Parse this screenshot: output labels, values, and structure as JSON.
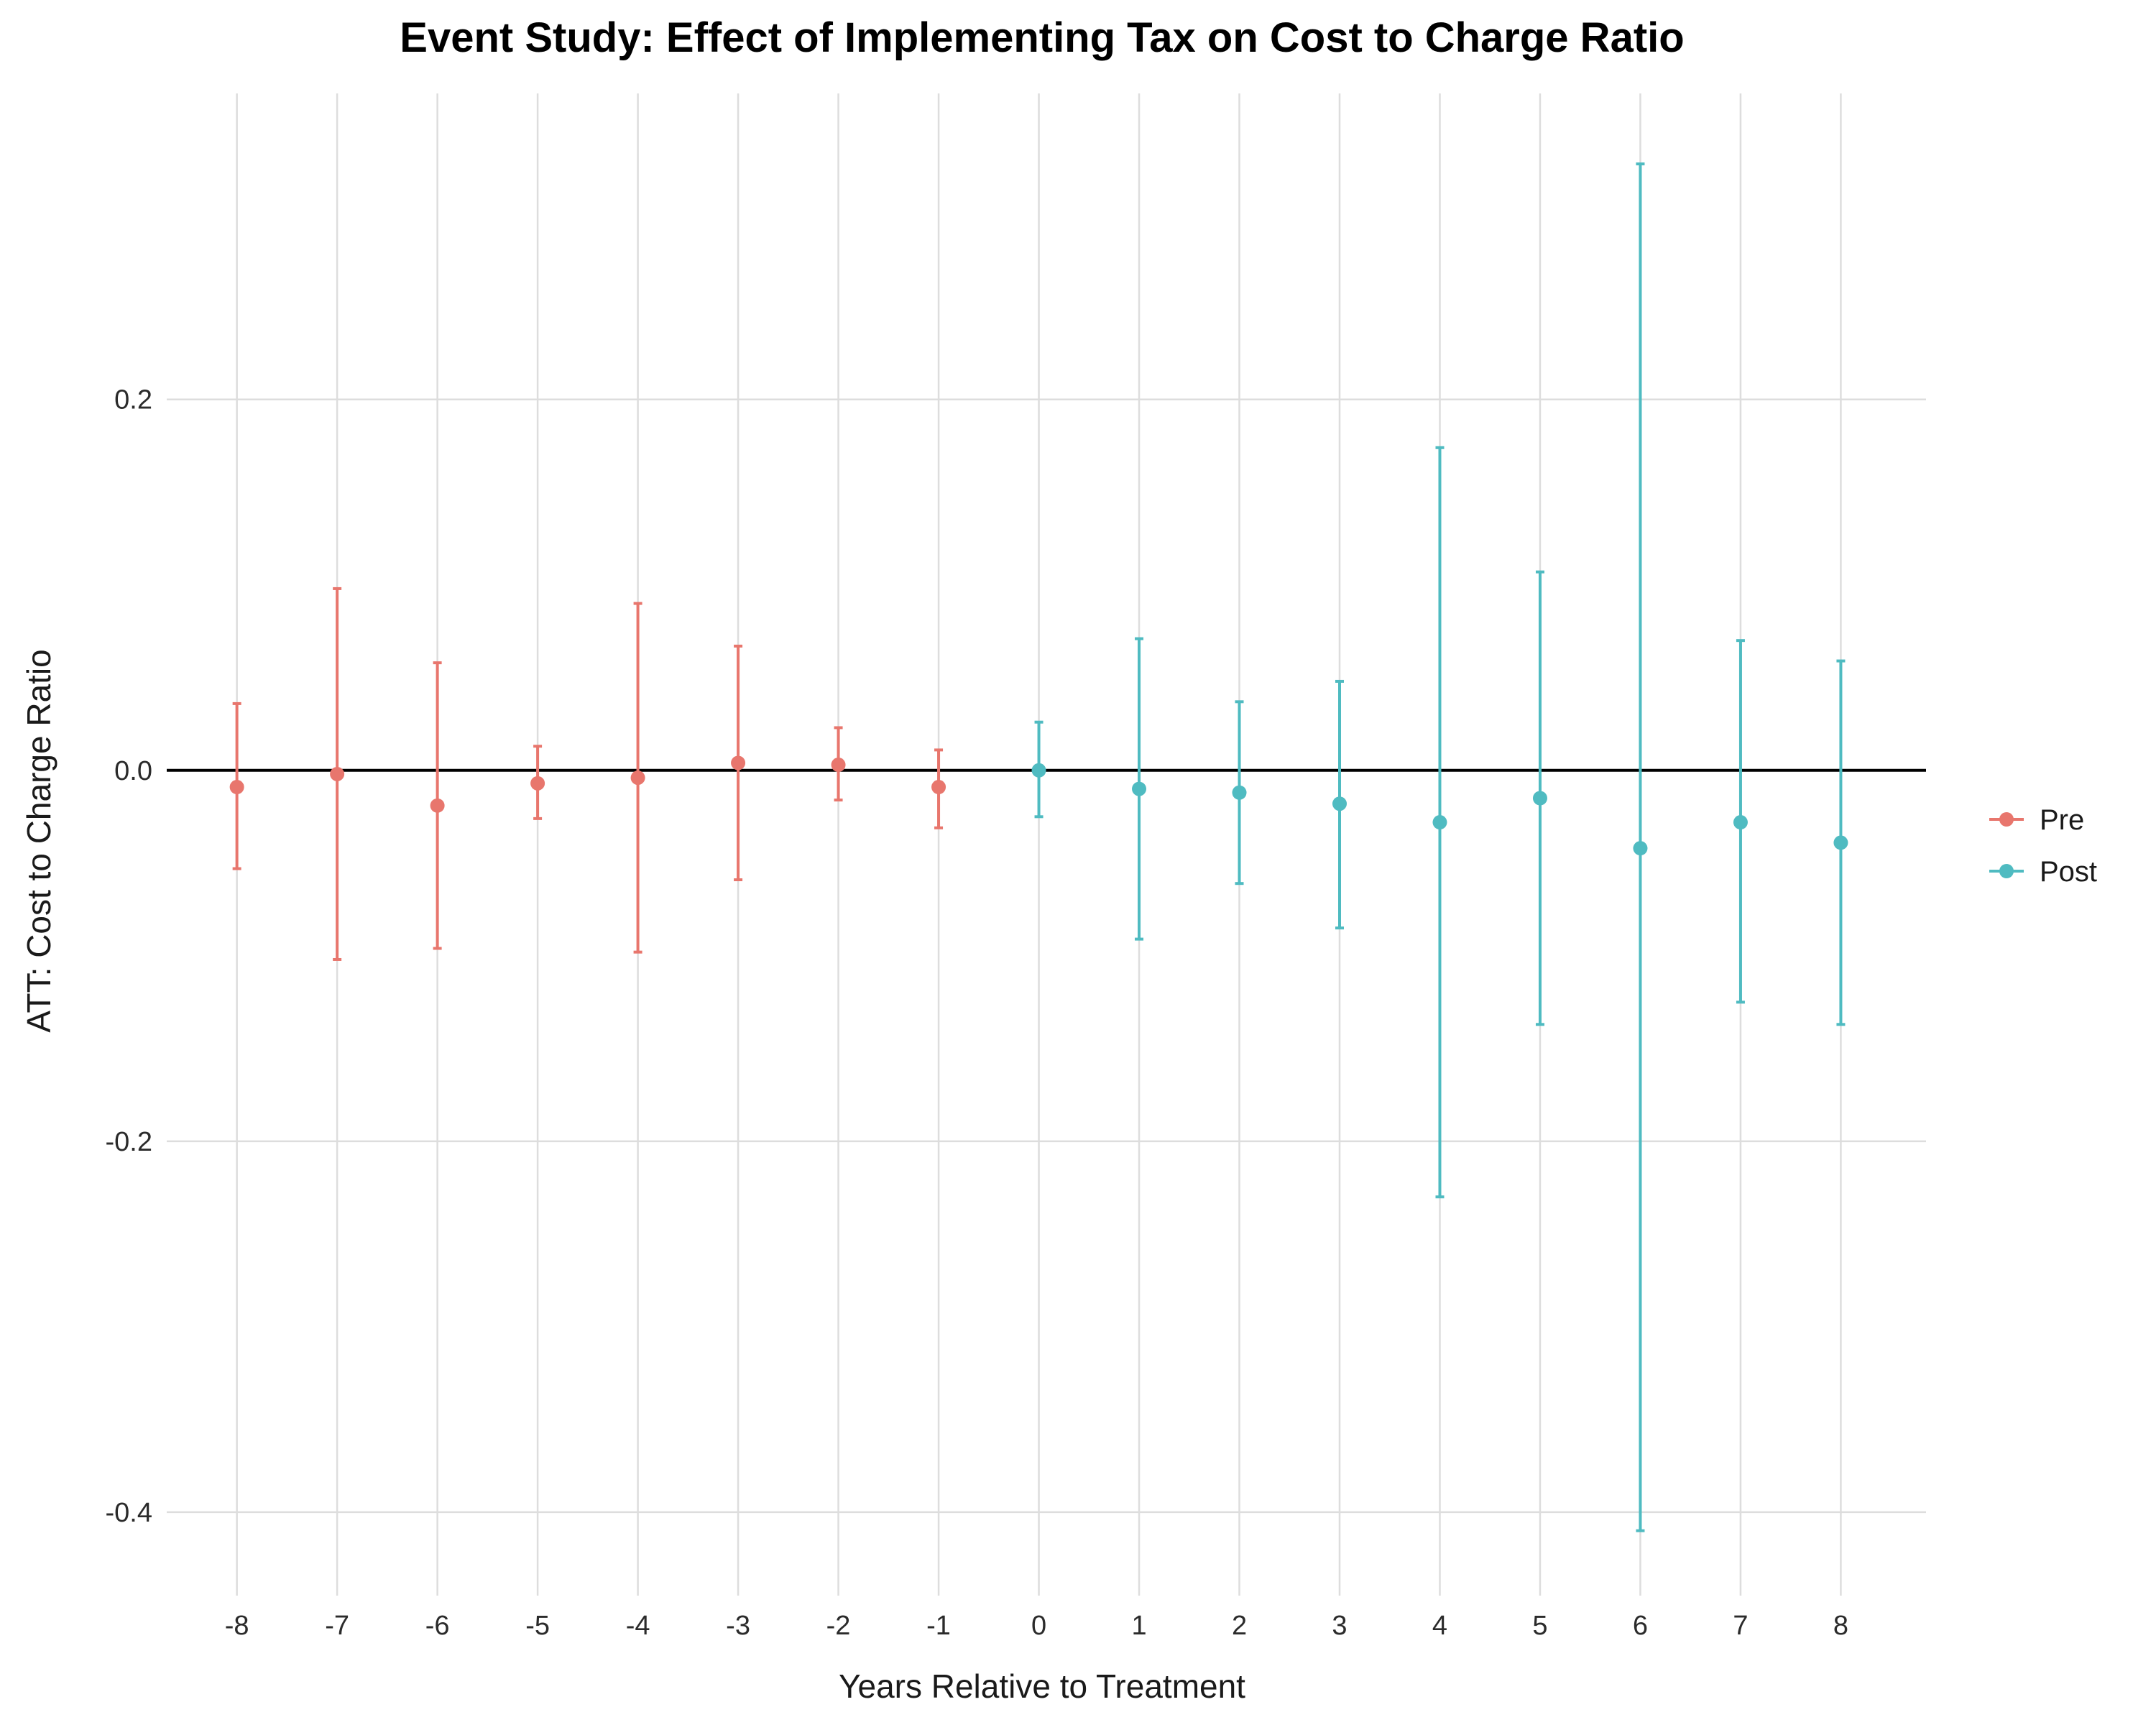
{
  "chart_data": {
    "type": "scatter",
    "title": "Event Study: Effect of Implementing Tax on Cost to Charge Ratio",
    "xlabel": "Years Relative to Treatment",
    "ylabel": "ATT: Cost to Charge Ratio",
    "x_ticks": [
      "-8",
      "-7",
      "-6",
      "-5",
      "-4",
      "-3",
      "-2",
      "-1",
      "0",
      "1",
      "2",
      "3",
      "4",
      "5",
      "6",
      "7",
      "8"
    ],
    "y_ticks": [
      "0.2",
      "0.0",
      "-0.2",
      "-0.4"
    ],
    "y_tick_values": [
      0.2,
      0.0,
      -0.2,
      -0.4
    ],
    "xlim": [
      -8.7,
      8.85
    ],
    "ylim": [
      -0.445,
      0.365
    ],
    "grid": true,
    "legend_position": "right",
    "reference_line": {
      "y": 0,
      "style": "dashed",
      "color": "#000000"
    },
    "series": [
      {
        "name": "Pre",
        "color": "#E8766D",
        "points": [
          {
            "x": -8,
            "y": -0.009,
            "lo": -0.053,
            "hi": 0.036
          },
          {
            "x": -7,
            "y": -0.002,
            "lo": -0.102,
            "hi": 0.098
          },
          {
            "x": -6,
            "y": -0.019,
            "lo": -0.096,
            "hi": 0.058
          },
          {
            "x": -5,
            "y": -0.007,
            "lo": -0.026,
            "hi": 0.013
          },
          {
            "x": -4,
            "y": -0.004,
            "lo": -0.098,
            "hi": 0.09
          },
          {
            "x": -3,
            "y": 0.004,
            "lo": -0.059,
            "hi": 0.067
          },
          {
            "x": -2,
            "y": 0.003,
            "lo": -0.016,
            "hi": 0.023
          },
          {
            "x": -1,
            "y": -0.009,
            "lo": -0.031,
            "hi": 0.011
          }
        ]
      },
      {
        "name": "Post",
        "color": "#4FBBC1",
        "points": [
          {
            "x": 0,
            "y": 0.0,
            "lo": -0.025,
            "hi": 0.026
          },
          {
            "x": 1,
            "y": -0.01,
            "lo": -0.091,
            "hi": 0.071
          },
          {
            "x": 2,
            "y": -0.012,
            "lo": -0.061,
            "hi": 0.037
          },
          {
            "x": 3,
            "y": -0.018,
            "lo": -0.085,
            "hi": 0.048
          },
          {
            "x": 4,
            "y": -0.028,
            "lo": -0.23,
            "hi": 0.174
          },
          {
            "x": 5,
            "y": -0.015,
            "lo": -0.137,
            "hi": 0.107
          },
          {
            "x": 6,
            "y": -0.042,
            "lo": -0.41,
            "hi": 0.327
          },
          {
            "x": 7,
            "y": -0.028,
            "lo": -0.125,
            "hi": 0.07
          },
          {
            "x": 8,
            "y": -0.039,
            "lo": -0.137,
            "hi": 0.059
          }
        ]
      }
    ]
  }
}
